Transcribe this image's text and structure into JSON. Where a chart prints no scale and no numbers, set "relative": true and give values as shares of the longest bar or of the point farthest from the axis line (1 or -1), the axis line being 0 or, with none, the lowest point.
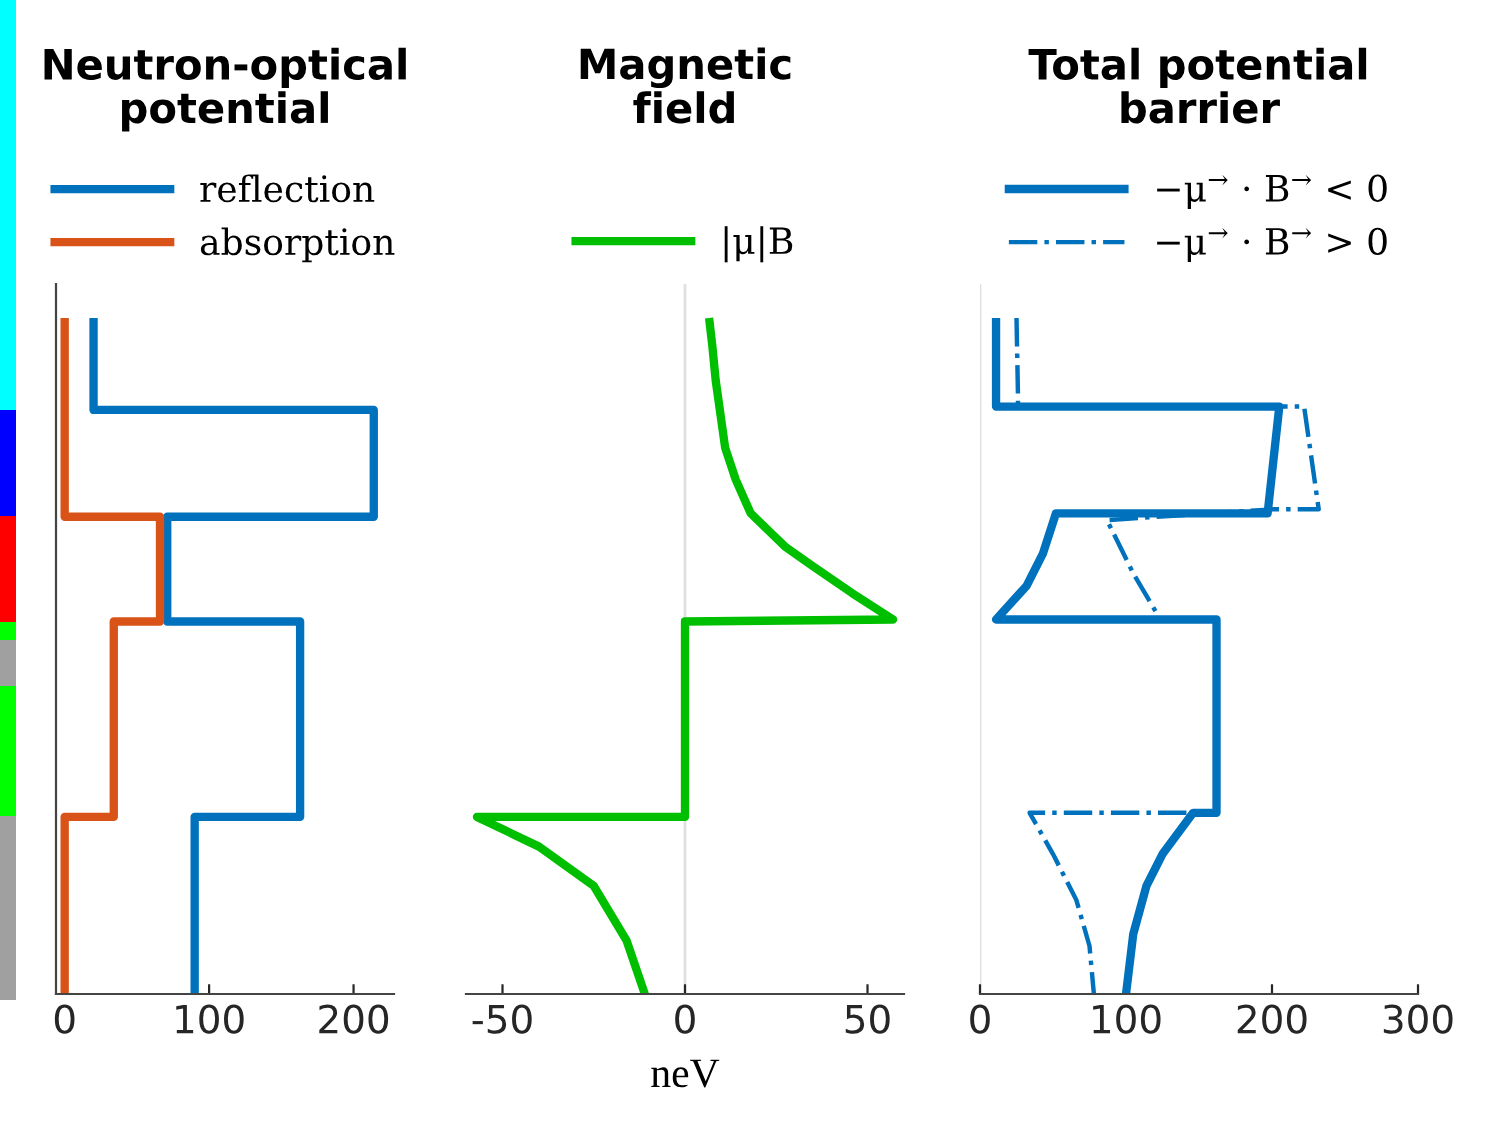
{
  "chart_data": [
    {
      "type": "line",
      "relative": true,
      "title": "Neutron-optical\npotential",
      "legend": "top",
      "xlim": [
        -6,
        228
      ],
      "xticks": [
        0,
        100,
        200
      ],
      "series": [
        {
          "name": "reflection",
          "color": "#0072bd",
          "x": [
            20,
            20,
            214,
            214,
            71,
            71,
            163,
            163,
            90,
            90
          ],
          "values": [
            1,
            0.864,
            0.864,
            0.706,
            0.706,
            0.551,
            0.551,
            0.262,
            0.262,
            0
          ]
        },
        {
          "name": "absorption",
          "color": "#d95319",
          "x": [
            0,
            0,
            66,
            66,
            34,
            34,
            0,
            0
          ],
          "values": [
            1,
            0.706,
            0.706,
            0.551,
            0.551,
            0.262,
            0.262,
            0
          ]
        }
      ]
    },
    {
      "type": "line",
      "relative": true,
      "title": "Magnetic\nfield",
      "xlabel": "neV",
      "legend": "top",
      "xlim": [
        -60,
        60
      ],
      "xticks": [
        -50,
        0,
        50
      ],
      "ref_lines": [
        {
          "axis": "x",
          "value": 0,
          "color": "#e0e0e0"
        }
      ],
      "series": [
        {
          "name": "|μ|B",
          "color": "#00bf00",
          "x": [
            6.6,
            7.5,
            8.4,
            11,
            13.9,
            18,
            27.6,
            35,
            45.8,
            57,
            0,
            0,
            -57,
            -40,
            -25,
            -16,
            -11
          ],
          "values": [
            1,
            0.958,
            0.908,
            0.808,
            0.761,
            0.711,
            0.661,
            0.633,
            0.593,
            0.554,
            0.551,
            0.262,
            0.262,
            0.218,
            0.16,
            0.079,
            0
          ]
        }
      ]
    },
    {
      "type": "line",
      "relative": true,
      "title": "Total potential\nbarrier",
      "legend": "top",
      "xlim": [
        0,
        300
      ],
      "xticks": [
        0,
        100,
        200,
        300
      ],
      "ref_lines": [
        {
          "axis": "x",
          "value": 0,
          "color": "#e0e0e0"
        }
      ],
      "series": [
        {
          "name": "−μ$^{→}$ · B$^{→}$ < 0",
          "color": "#0072bd",
          "line_style": "solid",
          "x": [
            11,
            11,
            205,
            197,
            52,
            43,
            32,
            11,
            162,
            162,
            146,
            125,
            114,
            105,
            100
          ],
          "values": [
            1,
            0.869,
            0.869,
            0.711,
            0.711,
            0.651,
            0.604,
            0.554,
            0.554,
            0.268,
            0.268,
            0.207,
            0.16,
            0.089,
            0
          ]
        },
        {
          "name": "−μ$^{→}$ · B$^{→}$ > 0",
          "color": "#0072bd",
          "line_style": "dashdot",
          "x": [
            25,
            26,
            26,
            222,
            232,
            201,
            87,
            105,
            123,
            162,
            162,
            34,
            50,
            66,
            75,
            78
          ],
          "values": [
            1,
            0.887,
            0.869,
            0.869,
            0.717,
            0.717,
            0.701,
            0.622,
            0.556,
            0.556,
            0.268,
            0.268,
            0.207,
            0.139,
            0.071,
            0
          ]
        }
      ]
    }
  ]
}
